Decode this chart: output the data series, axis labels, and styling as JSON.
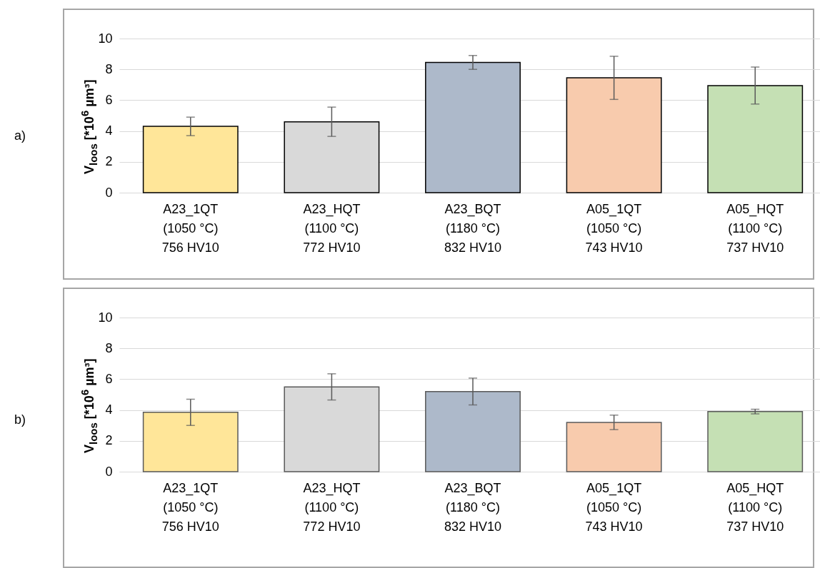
{
  "chart_data": [
    {
      "type": "bar",
      "annotations": [
        "a)"
      ],
      "ylabel": "V$_{loos}$ [*10$^{6}$ µm³]",
      "categories": [
        "A23_1QT\n(1050 °C)\n756 HV10",
        "A23_HQT\n(1100 °C)\n772 HV10",
        "A23_BQT\n(1180 °C)\n832 HV10",
        "A05_1QT\n(1050 °C)\n743 HV10",
        "A05_HQT\n(1100 °C)\n737 HV10"
      ],
      "values": [
        4.3,
        4.6,
        8.45,
        7.45,
        6.95
      ],
      "errors": [
        0.6,
        0.95,
        0.45,
        1.4,
        1.2
      ],
      "colors": [
        "#ffe699",
        "#d9d9d9",
        "#adb9ca",
        "#f8cbad",
        "#c5e0b4"
      ],
      "ylim": [
        0,
        10
      ],
      "yticks": [
        0,
        2,
        4,
        6,
        8,
        10
      ],
      "grid": "y"
    },
    {
      "type": "bar",
      "annotations": [
        "b)"
      ],
      "ylabel": "V$_{loos}$ [*10$^{6}$ µm³]",
      "categories": [
        "A23_1QT\n(1050 °C)\n756 HV10",
        "A23_HQT\n(1100 °C)\n772 HV10",
        "A23_BQT\n(1180 °C)\n832 HV10",
        "A05_1QT\n(1050 °C)\n743 HV10",
        "A05_HQT\n(1100 °C)\n737 HV10"
      ],
      "values": [
        3.85,
        5.5,
        5.2,
        3.2,
        3.9
      ],
      "errors": [
        0.85,
        0.85,
        0.87,
        0.47,
        0.15
      ],
      "colors": [
        "#ffe699",
        "#d9d9d9",
        "#adb9ca",
        "#f8cbad",
        "#c5e0b4"
      ],
      "ylim": [
        0,
        10
      ],
      "yticks": [
        0,
        2,
        4,
        6,
        8,
        10
      ],
      "grid": "y"
    }
  ]
}
